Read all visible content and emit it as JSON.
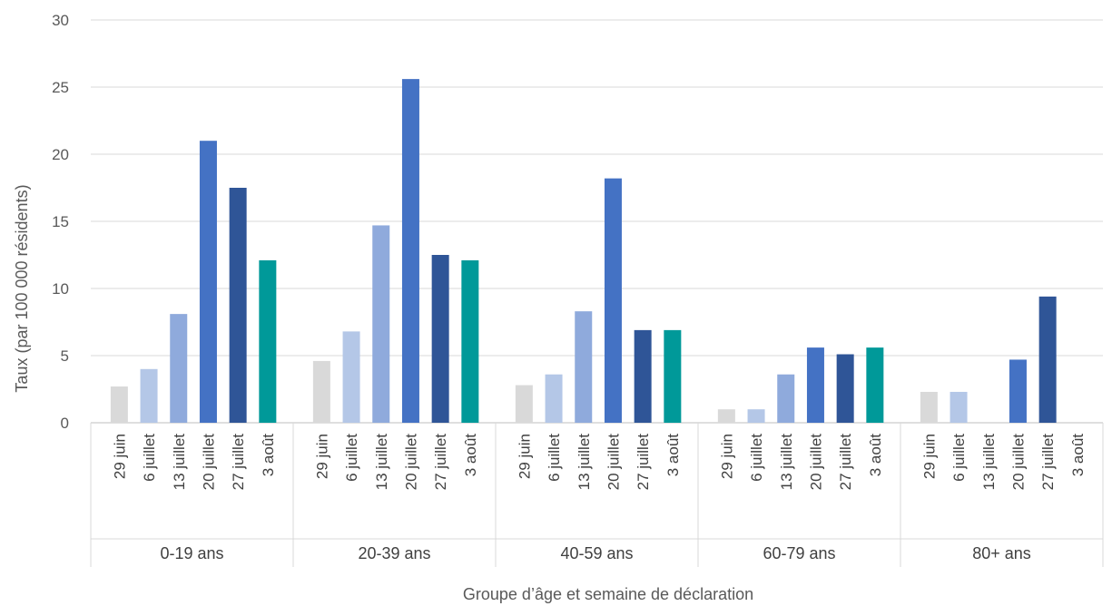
{
  "chart_data": {
    "type": "bar",
    "xlabel": "Groupe d’âge et semaine de déclaration",
    "ylabel": "Taux (par 100 000   résidents)",
    "ylim": [
      0,
      30
    ],
    "yticks": [
      0,
      5,
      10,
      15,
      20,
      25,
      30
    ],
    "grid": true,
    "weeks": [
      "29 juin",
      "6 juillet",
      "13 juillet",
      "20 juillet",
      "27 juillet",
      "3 août"
    ],
    "week_colors": [
      "#d9d9d9",
      "#b4c7e7",
      "#8faadc",
      "#4472c4",
      "#2f5597",
      "#009999"
    ],
    "groups": [
      {
        "name": "0-19 ans",
        "values": [
          2.7,
          4.0,
          8.1,
          21.0,
          17.5,
          12.1
        ]
      },
      {
        "name": "20-39 ans",
        "values": [
          4.6,
          6.8,
          14.7,
          25.6,
          12.5,
          12.1
        ]
      },
      {
        "name": "40-59 ans",
        "values": [
          2.8,
          3.6,
          8.3,
          18.2,
          6.9,
          6.9
        ]
      },
      {
        "name": "60-79 ans",
        "values": [
          1.0,
          1.0,
          3.6,
          5.6,
          5.1,
          5.6
        ]
      },
      {
        "name": "80+ ans",
        "values": [
          2.3,
          2.3,
          0,
          4.7,
          9.4,
          0
        ]
      }
    ]
  }
}
